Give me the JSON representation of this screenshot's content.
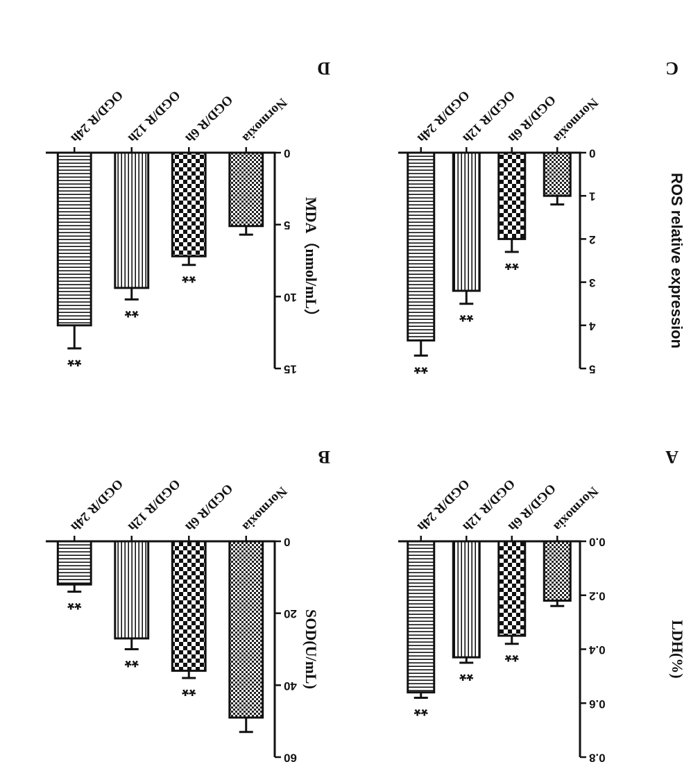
{
  "chart_data": [
    {
      "id": "A",
      "panel_label": "A",
      "type": "bar",
      "ylabel": "LDH(%)",
      "ylim": [
        0,
        0.8
      ],
      "yticks": [
        "0.0",
        "0.2",
        "0.4",
        "0.6",
        "0.8"
      ],
      "categories": [
        "Normoxia",
        "OGD/R 6h",
        "OGD/R 12h",
        "OGD/R 24h"
      ],
      "values": [
        0.22,
        0.35,
        0.43,
        0.56
      ],
      "errors": [
        0.02,
        0.03,
        0.02,
        0.02
      ],
      "annotations": [
        "",
        "**",
        "**",
        "**"
      ],
      "patterns": [
        "check-fine",
        "check-coarse",
        "vertical-lines",
        "horizontal-lines"
      ]
    },
    {
      "id": "B",
      "panel_label": "B",
      "type": "bar",
      "ylabel": "SOD(U/mL)",
      "ylim": [
        0,
        60
      ],
      "yticks": [
        "0",
        "20",
        "40",
        "60"
      ],
      "categories": [
        "Normoxia",
        "OGD/R 6h",
        "OGD/R 12h",
        "OGD/R 24h"
      ],
      "values": [
        49,
        36,
        27,
        12
      ],
      "errors": [
        4,
        2,
        3,
        2
      ],
      "annotations": [
        "",
        "**",
        "**",
        "**"
      ],
      "patterns": [
        "check-fine",
        "check-coarse",
        "vertical-lines",
        "horizontal-lines"
      ]
    },
    {
      "id": "C",
      "panel_label": "C",
      "type": "bar",
      "ylabel": "ROS relative expression",
      "ylim": [
        0,
        5
      ],
      "yticks": [
        "0",
        "1",
        "2",
        "3",
        "4",
        "5"
      ],
      "categories": [
        "Normoxia",
        "OGD/R 6h",
        "OGD/R 12h",
        "OGD/R 24h"
      ],
      "values": [
        1.0,
        2.0,
        3.2,
        4.35
      ],
      "errors": [
        0.2,
        0.3,
        0.3,
        0.35
      ],
      "annotations": [
        "",
        "**",
        "**",
        "**"
      ],
      "patterns": [
        "check-fine",
        "check-coarse",
        "vertical-lines",
        "horizontal-lines"
      ]
    },
    {
      "id": "D",
      "panel_label": "D",
      "type": "bar",
      "ylabel": "MDA（nmol/mL）",
      "ylim": [
        0,
        15
      ],
      "yticks": [
        "0",
        "5",
        "10",
        "15"
      ],
      "categories": [
        "Normoxia",
        "OGD/R 6h",
        "OGD/R 12h",
        "OGD/R 24h"
      ],
      "values": [
        5.1,
        7.2,
        9.4,
        12.0
      ],
      "errors": [
        0.6,
        0.6,
        0.8,
        1.6
      ],
      "annotations": [
        "",
        "**",
        "**",
        "**"
      ],
      "patterns": [
        "check-fine",
        "check-coarse",
        "vertical-lines",
        "horizontal-lines"
      ]
    }
  ]
}
